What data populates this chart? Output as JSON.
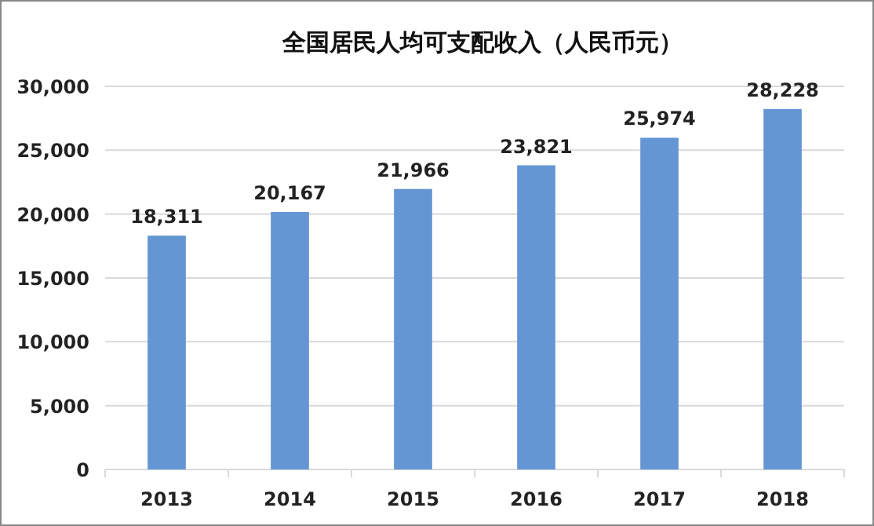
{
  "chart_data": {
    "type": "bar",
    "title": "全国居民人均可支配收入（人民币元）",
    "categories": [
      "2013",
      "2014",
      "2015",
      "2016",
      "2017",
      "2018"
    ],
    "values": [
      18311,
      20167,
      21966,
      23821,
      25974,
      28228
    ],
    "color": "#6496d4",
    "ylim": [
      0,
      30000
    ],
    "yticks": [
      {
        "value": 0,
        "label": "0"
      },
      {
        "value": 5000,
        "label": "5,000"
      },
      {
        "value": 10000,
        "label": "10,000"
      },
      {
        "value": 15000,
        "label": "15,000"
      },
      {
        "value": 20000,
        "label": "20,000"
      },
      {
        "value": 25000,
        "label": "25,000"
      },
      {
        "value": 30000,
        "label": "30,000"
      }
    ],
    "value_labels": [
      "18,311",
      "20,167",
      "21,966",
      "23,821",
      "25,974",
      "28,228"
    ],
    "grid": "y"
  }
}
